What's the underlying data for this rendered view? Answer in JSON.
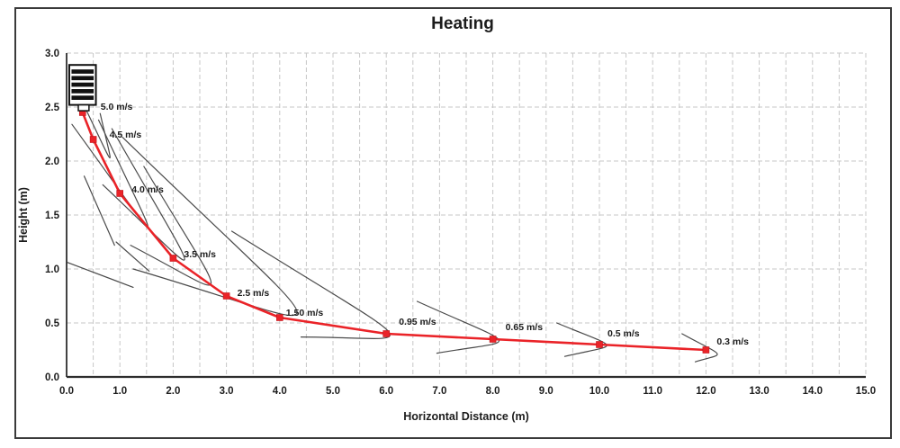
{
  "figure_title": "Heating",
  "chart_data": {
    "type": "line",
    "title": "Heating",
    "xlabel": "Horizontal Distance (m)",
    "ylabel": "Height (m)",
    "xlim": [
      0,
      15
    ],
    "ylim": [
      0,
      3
    ],
    "x_ticks": [
      "0.0",
      "1.0",
      "2.0",
      "3.0",
      "4.0",
      "5.0",
      "6.0",
      "7.0",
      "8.0",
      "9.0",
      "10.0",
      "11.0",
      "12.0",
      "13.0",
      "14.0",
      "15.0"
    ],
    "y_ticks": [
      "0.0",
      "0.5",
      "1.0",
      "1.5",
      "2.0",
      "2.5",
      "3.0"
    ],
    "grid": {
      "on": true,
      "style": "dashed",
      "x_step": 0.5,
      "y_step": 0.5,
      "color": "#c7c7c7"
    },
    "legend": "none",
    "colors": {
      "trajectory": "#ea2328",
      "marker": "#ea2328",
      "envelope": "#4a4a4a",
      "axis": "#2d2d2d",
      "frame": "#3a3a3a",
      "text": "#1c1c1c"
    },
    "series": [
      {
        "name": "air-jet-centerline",
        "marker": "square",
        "line_start": [
          0.32,
          2.47
        ],
        "points": [
          {
            "x": 0.3,
            "y": 2.45,
            "label": "5.0 m/s",
            "label_offset": [
              20,
              -6
            ]
          },
          {
            "x": 0.5,
            "y": 2.2,
            "label": "4.5 m/s",
            "label_offset": [
              18,
              -5
            ]
          },
          {
            "x": 1.0,
            "y": 1.7,
            "label": "4.0 m/s",
            "label_offset": [
              13,
              -4
            ]
          },
          {
            "x": 2.0,
            "y": 1.1,
            "label": "3.5 m/s",
            "label_offset": [
              12,
              -4
            ]
          },
          {
            "x": 3.0,
            "y": 0.75,
            "label": "2.5 m/s",
            "label_offset": [
              12,
              -3
            ]
          },
          {
            "x": 4.0,
            "y": 0.55,
            "label": "1.50 m/s",
            "label_offset": [
              7,
              -5
            ]
          },
          {
            "x": 6.0,
            "y": 0.4,
            "label": "0.95 m/s",
            "label_offset": [
              14,
              -13
            ]
          },
          {
            "x": 8.0,
            "y": 0.35,
            "label": "0.65 m/s",
            "label_offset": [
              14,
              -13
            ]
          },
          {
            "x": 10.0,
            "y": 0.3,
            "label": "0.5 m/s",
            "label_offset": [
              9,
              -12
            ]
          },
          {
            "x": 12.0,
            "y": 0.25,
            "label": "0.3 m/s",
            "label_offset": [
              12,
              -9
            ]
          }
        ]
      }
    ],
    "envelope_curves": [
      {
        "u": [
          0.38,
          2.46
        ],
        "tip": [
          0.84,
          1.99
        ],
        "l": [
          0.63,
          2.44
        ]
      },
      {
        "u": [
          0.1,
          2.34
        ],
        "tip": [
          1.63,
          1.3
        ],
        "l": [
          0.6,
          2.38
        ]
      },
      {
        "u": [
          0.85,
          2.3
        ],
        "tip": [
          2.35,
          1.0
        ],
        "l": [
          0.68,
          1.78
        ]
      },
      {
        "u": [
          1.45,
          1.95
        ],
        "tip": [
          2.84,
          0.8
        ],
        "l": [
          1.2,
          1.22
        ]
      },
      {
        "u": [
          1.05,
          2.22
        ],
        "tip": [
          4.62,
          0.51
        ],
        "l": [
          1.25,
          1.0
        ]
      },
      {
        "u": [
          3.1,
          1.35
        ],
        "tip": [
          6.27,
          0.37
        ],
        "l": [
          4.4,
          0.37
        ]
      },
      {
        "u": [
          6.58,
          0.7
        ],
        "tip": [
          8.24,
          0.33
        ],
        "l": [
          6.95,
          0.22
        ]
      },
      {
        "u": [
          9.2,
          0.5
        ],
        "tip": [
          10.22,
          0.29
        ],
        "l": [
          9.35,
          0.19
        ]
      },
      {
        "u": [
          11.55,
          0.4
        ],
        "tip": [
          12.26,
          0.21
        ],
        "l": [
          11.8,
          0.14
        ]
      }
    ],
    "stray_segments": [
      [
        0.02,
        1.06,
        1.25,
        0.83
      ],
      [
        0.93,
        1.25,
        1.55,
        0.98
      ],
      [
        0.33,
        1.86,
        0.9,
        1.22
      ]
    ],
    "unit_icon": {
      "name": "wall-mounted-heater-diffuser",
      "x_range": [
        0.05,
        0.55
      ],
      "y_range": [
        2.52,
        2.89
      ],
      "slats": 5,
      "outlet_x_range": [
        0.22,
        0.42
      ]
    }
  }
}
